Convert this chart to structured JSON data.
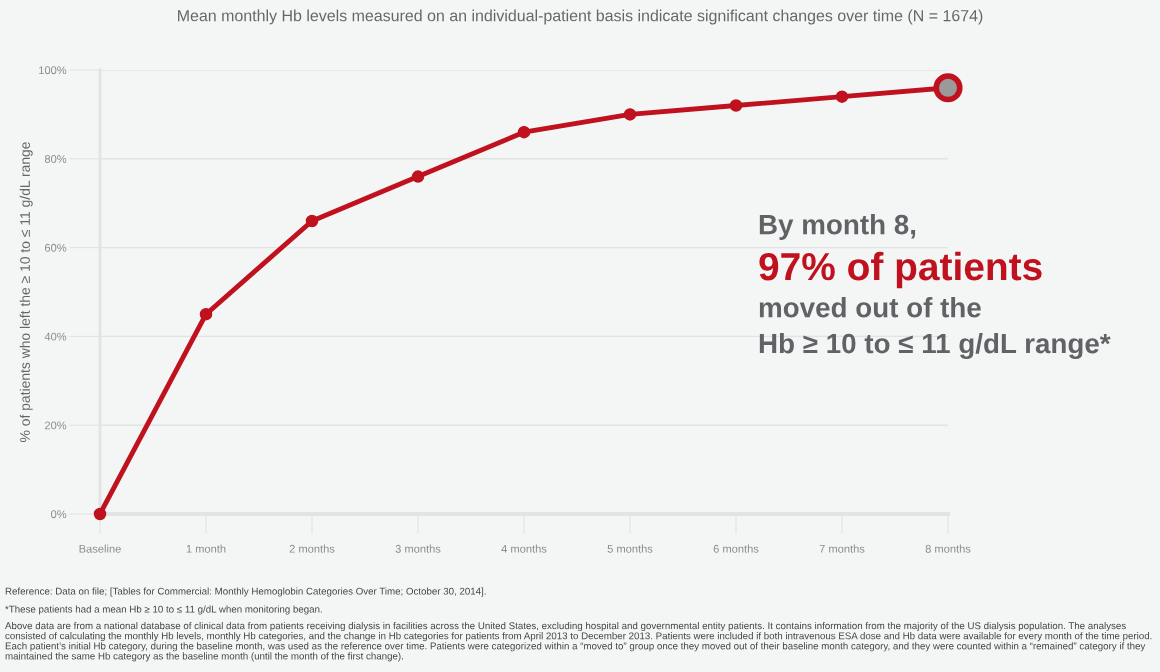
{
  "chart_data": {
    "type": "line",
    "title": "Mean monthly Hb levels measured on an individual-patient basis indicate significant changes over time (N = 1674)",
    "ylabel": "% of patients who left the ≥ 10 to ≤ 11 g/dL range",
    "categories": [
      "Baseline",
      "1 month",
      "2 months",
      "3 months",
      "4 months",
      "5 months",
      "6 months",
      "7 months",
      "8 months"
    ],
    "series": [
      {
        "color": "#c0111f",
        "values": [
          0,
          45,
          66,
          76,
          86,
          90,
          92,
          94,
          96
        ],
        "colors": [
          "#c0111f",
          "#c0111f",
          "#c0111f",
          "#c0111f",
          "#c0111f",
          "#c0111f",
          "#c0111f",
          "#c0111f",
          "#9a9a9a"
        ]
      }
    ],
    "ylim": [
      0,
      100
    ],
    "yticks": [
      {
        "value": 0,
        "label": "0%"
      },
      {
        "value": 20,
        "label": "20%"
      },
      {
        "value": 40,
        "label": "40%"
      },
      {
        "value": 60,
        "label": "60%"
      },
      {
        "value": 80,
        "label": "80%"
      },
      {
        "value": 100,
        "label": "100%"
      }
    ],
    "grid": "y",
    "marker": "circle",
    "line_style": "solid",
    "legend": false,
    "annotations": [
      "By month 8,",
      "97% of patients",
      "moved out of the",
      "Hb ≥ 10 to ≤ 11 g/dL range*",
      "Reference: Data on file; [Tables for Commercial: Monthly Hemoglobin Categories Over Time; October 30, 2014].",
      "*These patients had a mean Hb ≥ 10 to ≤ 11 g/dL when monitoring began.",
      "Above data are from a national database of clinical data from patients receiving dialysis in facilities across the United States, excluding hospital and governmental entity patients. It contains information from the majority of the US dialysis population. The analyses consisted of calculating the monthly Hb levels, monthly Hb categories, and the change in Hb categories for patients from April 2013 to December 2013. Patients were included if both intravenous ESA dose and Hb data were available for every month of the time period. Each patient’s initial Hb category, during the baseline month, was used as the reference over time. Patients were categorized within a “moved to” group once they moved out of their baseline month category, and they were counted within a “remained” category if they maintained the same Hb category as the baseline month (until the month of the first change)."
    ]
  }
}
